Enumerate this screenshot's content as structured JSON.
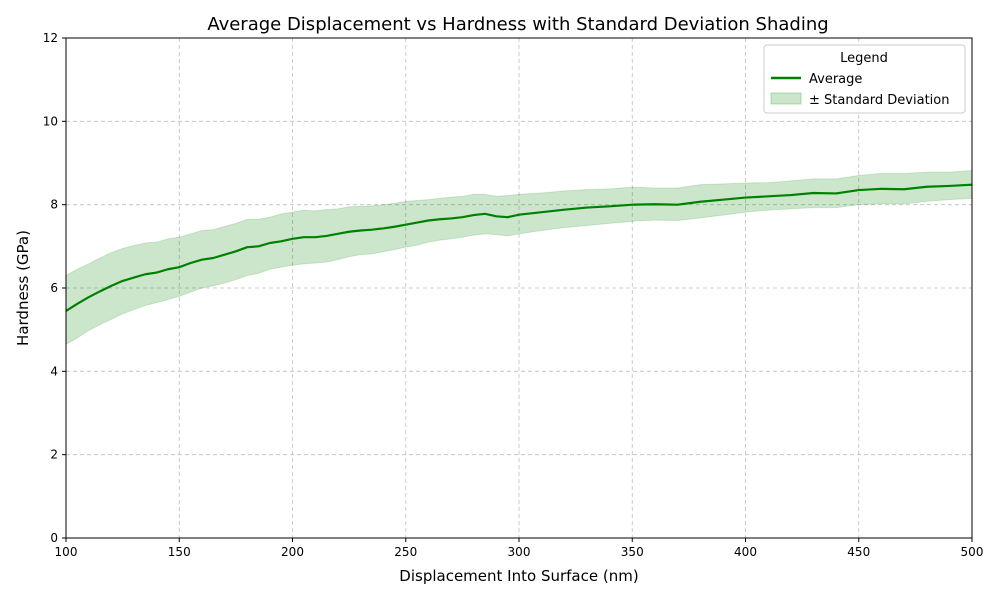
{
  "chart_data": {
    "type": "line",
    "title": "Average Displacement vs Hardness with Standard Deviation Shading",
    "xlabel": "Displacement Into Surface (nm)",
    "ylabel": "Hardness (GPa)",
    "xlim": [
      100,
      500
    ],
    "ylim": [
      0,
      12
    ],
    "xticks": [
      "100",
      "150",
      "200",
      "250",
      "300",
      "350",
      "400",
      "450",
      "500"
    ],
    "yticks": [
      "0",
      "2",
      "4",
      "6",
      "8",
      "10",
      "12"
    ],
    "grid": true,
    "legend_position": "top-right",
    "legend_title": "Legend",
    "series": [
      {
        "name": "Average",
        "color": "#008000",
        "x": [
          100,
          105,
          110,
          115,
          120,
          125,
          130,
          135,
          140,
          145,
          150,
          155,
          160,
          165,
          170,
          175,
          180,
          185,
          190,
          195,
          200,
          205,
          210,
          215,
          220,
          225,
          230,
          235,
          240,
          245,
          250,
          255,
          260,
          265,
          270,
          275,
          280,
          285,
          290,
          295,
          300,
          310,
          320,
          330,
          340,
          350,
          360,
          370,
          380,
          390,
          400,
          410,
          420,
          430,
          440,
          450,
          460,
          470,
          480,
          490,
          500
        ],
        "y": [
          5.45,
          5.62,
          5.78,
          5.92,
          6.05,
          6.17,
          6.25,
          6.33,
          6.37,
          6.45,
          6.5,
          6.6,
          6.68,
          6.72,
          6.8,
          6.88,
          6.98,
          7.0,
          7.08,
          7.12,
          7.18,
          7.22,
          7.22,
          7.25,
          7.3,
          7.35,
          7.38,
          7.4,
          7.43,
          7.47,
          7.52,
          7.57,
          7.62,
          7.65,
          7.67,
          7.7,
          7.75,
          7.78,
          7.72,
          7.7,
          7.76,
          7.82,
          7.88,
          7.93,
          7.96,
          8.0,
          8.01,
          8.0,
          8.07,
          8.12,
          8.17,
          8.2,
          8.23,
          8.28,
          8.27,
          8.35,
          8.38,
          8.37,
          8.43,
          8.45,
          8.48
        ]
      },
      {
        "name": "± Standard Deviation",
        "color": "#008000",
        "x": [
          100,
          105,
          110,
          115,
          120,
          125,
          130,
          135,
          140,
          145,
          150,
          155,
          160,
          165,
          170,
          175,
          180,
          185,
          190,
          195,
          200,
          205,
          210,
          215,
          220,
          225,
          230,
          235,
          240,
          245,
          250,
          255,
          260,
          265,
          270,
          275,
          280,
          285,
          290,
          295,
          300,
          310,
          320,
          330,
          340,
          350,
          360,
          370,
          380,
          390,
          400,
          410,
          420,
          430,
          440,
          450,
          460,
          470,
          480,
          490,
          500
        ],
        "upper": [
          6.3,
          6.45,
          6.58,
          6.72,
          6.85,
          6.95,
          7.02,
          7.08,
          7.1,
          7.18,
          7.22,
          7.3,
          7.38,
          7.4,
          7.48,
          7.55,
          7.65,
          7.65,
          7.7,
          7.78,
          7.82,
          7.87,
          7.85,
          7.88,
          7.9,
          7.95,
          7.96,
          7.97,
          8.0,
          8.03,
          8.08,
          8.1,
          8.12,
          8.15,
          8.18,
          8.2,
          8.25,
          8.25,
          8.2,
          8.22,
          8.25,
          8.28,
          8.33,
          8.36,
          8.38,
          8.42,
          8.4,
          8.4,
          8.48,
          8.5,
          8.52,
          8.53,
          8.57,
          8.62,
          8.62,
          8.7,
          8.75,
          8.75,
          8.78,
          8.78,
          8.82
        ],
        "lower": [
          4.65,
          4.8,
          4.98,
          5.12,
          5.25,
          5.38,
          5.48,
          5.58,
          5.65,
          5.72,
          5.8,
          5.9,
          6.0,
          6.05,
          6.12,
          6.2,
          6.3,
          6.35,
          6.45,
          6.5,
          6.55,
          6.58,
          6.6,
          6.62,
          6.68,
          6.75,
          6.8,
          6.82,
          6.87,
          6.92,
          6.98,
          7.03,
          7.1,
          7.15,
          7.18,
          7.22,
          7.27,
          7.3,
          7.28,
          7.25,
          7.3,
          7.38,
          7.45,
          7.5,
          7.55,
          7.6,
          7.63,
          7.62,
          7.68,
          7.75,
          7.82,
          7.87,
          7.9,
          7.93,
          7.93,
          8.0,
          8.02,
          8.02,
          8.08,
          8.12,
          8.15
        ]
      }
    ]
  }
}
